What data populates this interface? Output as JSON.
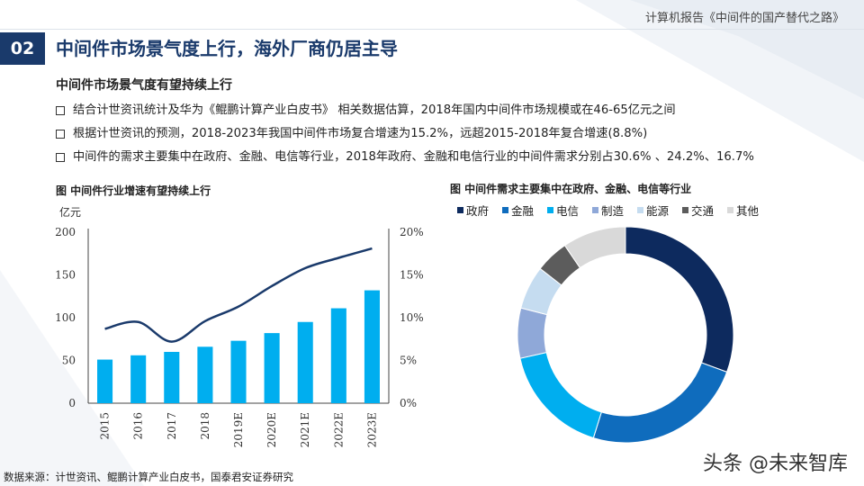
{
  "header": {
    "report_title": "计算机报告《中间件的国产替代之路》"
  },
  "section": {
    "number": "02",
    "title": "中间件市场景气度上行，海外厂商仍居主导"
  },
  "subtitle": "中间件市场景气度有望持续上行",
  "bullets": [
    "结合计世资讯统计及华为《鲲鹏计算产业白皮书》 相关数据估算，2018年国内中间件市场规模或在46-65亿元之间",
    "根据计世资讯的预测，2018-2023年我国中间件市场复合增速为15.2%，远超2015-2018年复合增速(8.8%)",
    "中间件的需求主要集中在政府、金融、电信等行业，2018年政府、金融和电信行业的中间件需求分别占30.6% 、24.2%、16.7%"
  ],
  "source": "数据来源：计世资讯、鲲鹏计算产业白皮书，国泰君安证券研究",
  "watermark": "头条 @未来智库",
  "colors": {
    "accent": "#1a3a6b",
    "bar": "#00aeef",
    "line": "#1a3a6b"
  },
  "chart_data": [
    {
      "type": "bar",
      "title": "图 中间件行业增速有望持续上行",
      "ylabel": "亿元",
      "categories": [
        "2015",
        "2016",
        "2017",
        "2018",
        "2019E",
        "2020E",
        "2021E",
        "2022E",
        "2023E"
      ],
      "series": [
        {
          "kind": "bar",
          "axis": "left",
          "values": [
            51,
            56,
            60,
            66,
            73,
            82,
            95,
            111,
            132
          ]
        },
        {
          "kind": "line",
          "axis": "right",
          "values": [
            8.7,
            9.5,
            7.2,
            9.6,
            11.3,
            13.7,
            15.8,
            17.0,
            18.1
          ]
        }
      ],
      "ylim": [
        0,
        200
      ],
      "yticks": [
        0,
        50,
        100,
        150,
        200
      ],
      "y2lim": [
        0,
        20
      ],
      "y2ticks": [
        "0%",
        "5%",
        "10%",
        "15%",
        "20%"
      ],
      "legend": false,
      "grid": false
    },
    {
      "type": "pie",
      "style": "donut",
      "title": "图 中间件需求主要集中在政府、金融、电信等行业",
      "legend_position": "top",
      "labels": [
        "政府",
        "金融",
        "电信",
        "制造",
        "能源",
        "交通",
        "其他"
      ],
      "values": [
        30.6,
        24.2,
        16.7,
        7.5,
        6.5,
        5.0,
        9.5
      ],
      "colors": [
        "#0d2a5e",
        "#0f6cbd",
        "#00aeef",
        "#8fa8d8",
        "#c5dcf0",
        "#5c5c5c",
        "#d9d9d9"
      ]
    }
  ]
}
